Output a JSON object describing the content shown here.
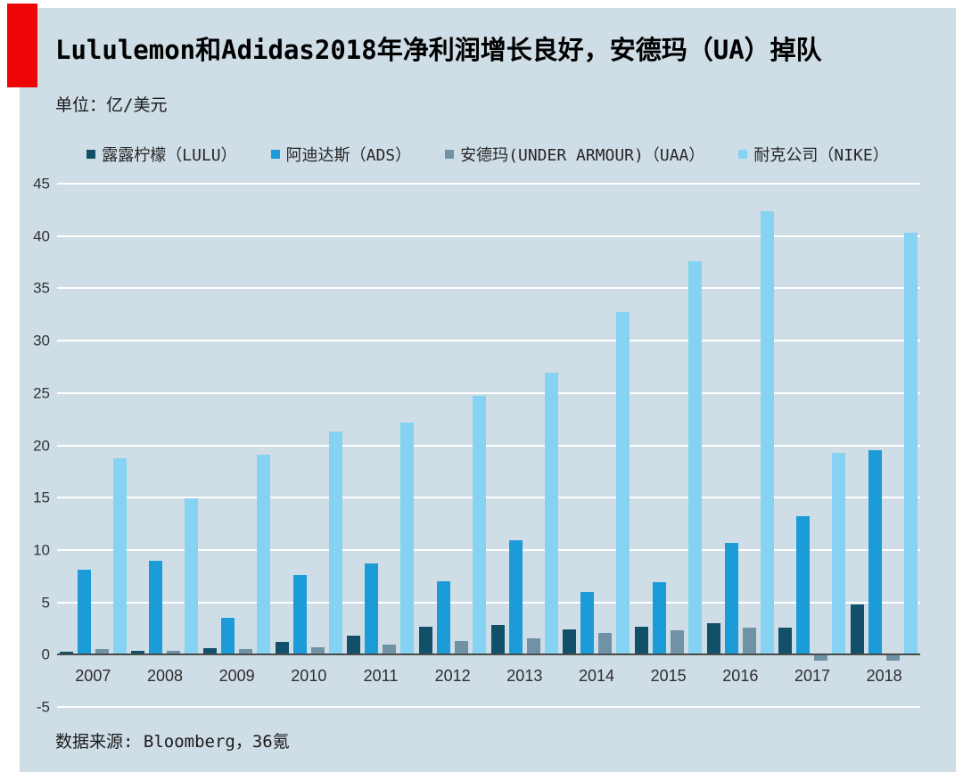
{
  "header": {
    "title": "Lululemon和Adidas2018年净利润增长良好，安德玛（UA）掉队",
    "unit_label": "单位：亿/美元"
  },
  "footer": {
    "source": "数据来源: Bloomberg，36氪"
  },
  "colors": {
    "panel_background": "#cfdde6",
    "accent_red_block": "#ee0505",
    "gridline": "#ffffff",
    "axis_line": "#4a4a4a",
    "text": "#262626"
  },
  "chart_data": {
    "type": "bar",
    "title": "Lululemon和Adidas2018年净利润增长良好，安德玛（UA）掉队",
    "unit": "亿/美元",
    "categories": [
      "2007",
      "2008",
      "2009",
      "2010",
      "2011",
      "2012",
      "2013",
      "2014",
      "2015",
      "2016",
      "2017",
      "2018"
    ],
    "series": [
      {
        "name": "露露柠檬（LULU）",
        "color": "#12506a",
        "values": [
          0.3,
          0.4,
          0.6,
          1.2,
          1.8,
          2.7,
          2.8,
          2.4,
          2.7,
          3.0,
          2.6,
          4.8
        ]
      },
      {
        "name": "阿迪达斯（ADS）",
        "color": "#1b9cd9",
        "values": [
          8.1,
          9.0,
          3.5,
          7.6,
          8.7,
          7.0,
          10.9,
          6.0,
          6.9,
          10.7,
          13.2,
          19.5
        ]
      },
      {
        "name": "安德玛(UNDER ARMOUR)（UAA）",
        "color": "#6f92a6",
        "values": [
          0.5,
          0.4,
          0.5,
          0.7,
          1.0,
          1.3,
          1.6,
          2.1,
          2.3,
          2.6,
          -0.5,
          -0.5
        ]
      },
      {
        "name": "耐克公司（NIKE）",
        "color": "#85d2f2",
        "values": [
          18.8,
          14.9,
          19.1,
          21.3,
          22.2,
          24.7,
          26.9,
          32.7,
          37.6,
          42.4,
          19.3,
          40.3
        ]
      }
    ],
    "ylabel": "",
    "xlabel": "",
    "ylim": [
      -5,
      45
    ],
    "ytick_step": 5,
    "grid": true,
    "legend_position": "top"
  }
}
